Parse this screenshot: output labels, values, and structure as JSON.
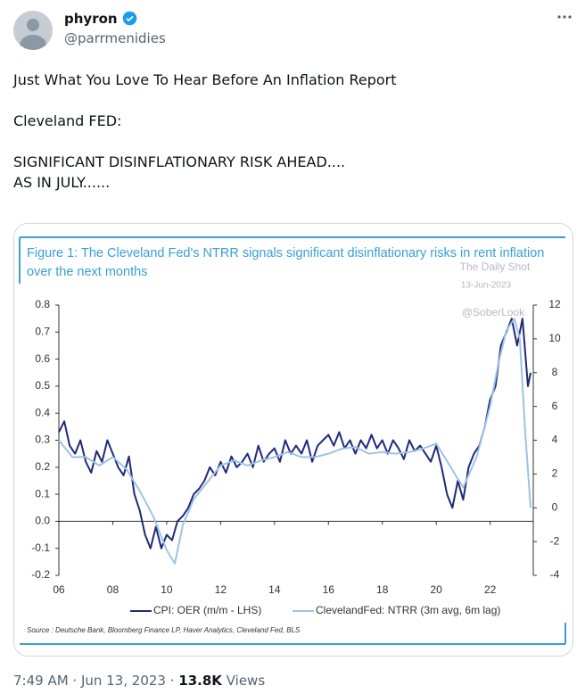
{
  "tweet": {
    "name": "phyron",
    "handle": "@parrmenidies",
    "paragraphs": [
      "Just What You Love To Hear Before An Inflation Report",
      "Cleveland FED:"
    ],
    "last_lines": [
      "SIGNIFICANT DISINFLATIONARY RISK AHEAD....",
      "AS IN JULY......"
    ],
    "time": "7:49 AM",
    "date": "Jun 13, 2023",
    "views": "13.8K",
    "views_label": "Views"
  },
  "chart_data": {
    "type": "line",
    "title": "Figure 1: The Cleveland Fed's NTRR signals significant disinflationary risks in rent inflation over the next months",
    "watermarks": [
      "The Daily Shot",
      "13-Jun-2023",
      "@SoberLook"
    ],
    "source": "Source : Deutsche Bank, Bloomberg Finance LP, Haver Analytics, Cleveland Fed, BLS",
    "xlim": [
      2005.9,
      2023.6
    ],
    "xticks": [
      {
        "value": 2006,
        "label": "06"
      },
      {
        "value": 2008,
        "label": "08"
      },
      {
        "value": 2010,
        "label": "10"
      },
      {
        "value": 2012,
        "label": "12"
      },
      {
        "value": 2014,
        "label": "14"
      },
      {
        "value": 2016,
        "label": "16"
      },
      {
        "value": 2018,
        "label": "18"
      },
      {
        "value": 2020,
        "label": "20"
      },
      {
        "value": 2022,
        "label": "22"
      }
    ],
    "ylim": [
      -0.2,
      0.8
    ],
    "yticks": [
      -0.2,
      -0.1,
      {
        "value": 0,
        "label": "0.0"
      },
      0.1,
      0.2,
      0.3,
      0.4,
      0.5,
      0.6,
      0.7,
      0.8
    ],
    "y2lim": [
      -4,
      12
    ],
    "y2ticks": [
      -4,
      -2,
      0,
      2,
      4,
      6,
      8,
      10,
      12
    ],
    "series": [
      {
        "name": "CPI: OER (m/m - LHS)",
        "color": "#1f2a7a",
        "x": [
          2006.0,
          2006.2,
          2006.4,
          2006.6,
          2006.8,
          2007.0,
          2007.2,
          2007.4,
          2007.6,
          2007.8,
          2008.0,
          2008.2,
          2008.4,
          2008.6,
          2008.8,
          2009.0,
          2009.2,
          2009.4,
          2009.6,
          2009.8,
          2010.0,
          2010.2,
          2010.4,
          2010.6,
          2010.8,
          2011.0,
          2011.2,
          2011.4,
          2011.6,
          2011.8,
          2012.0,
          2012.2,
          2012.4,
          2012.6,
          2012.8,
          2013.0,
          2013.2,
          2013.4,
          2013.6,
          2013.8,
          2014.0,
          2014.2,
          2014.4,
          2014.6,
          2014.8,
          2015.0,
          2015.2,
          2015.4,
          2015.6,
          2015.8,
          2016.0,
          2016.2,
          2016.4,
          2016.6,
          2016.8,
          2017.0,
          2017.2,
          2017.4,
          2017.6,
          2017.8,
          2018.0,
          2018.2,
          2018.4,
          2018.6,
          2018.8,
          2019.0,
          2019.2,
          2019.4,
          2019.6,
          2019.8,
          2020.0,
          2020.2,
          2020.4,
          2020.6,
          2020.8,
          2021.0,
          2021.2,
          2021.4,
          2021.6,
          2021.8,
          2022.0,
          2022.2,
          2022.4,
          2022.6,
          2022.8,
          2023.0,
          2023.2,
          2023.4,
          2023.5
        ],
        "values": [
          0.33,
          0.37,
          0.28,
          0.25,
          0.3,
          0.22,
          0.18,
          0.26,
          0.22,
          0.3,
          0.25,
          0.2,
          0.17,
          0.24,
          0.1,
          0.04,
          -0.05,
          -0.1,
          -0.02,
          -0.1,
          -0.05,
          -0.07,
          0.0,
          0.02,
          0.05,
          0.1,
          0.12,
          0.15,
          0.2,
          0.17,
          0.22,
          0.18,
          0.24,
          0.2,
          0.22,
          0.25,
          0.2,
          0.28,
          0.22,
          0.25,
          0.27,
          0.22,
          0.3,
          0.25,
          0.28,
          0.25,
          0.3,
          0.22,
          0.28,
          0.3,
          0.32,
          0.28,
          0.33,
          0.27,
          0.3,
          0.25,
          0.3,
          0.27,
          0.32,
          0.27,
          0.3,
          0.25,
          0.3,
          0.27,
          0.23,
          0.3,
          0.26,
          0.28,
          0.25,
          0.22,
          0.28,
          0.2,
          0.1,
          0.05,
          0.15,
          0.08,
          0.2,
          0.25,
          0.28,
          0.35,
          0.45,
          0.5,
          0.65,
          0.7,
          0.75,
          0.65,
          0.75,
          0.5,
          0.55
        ]
      },
      {
        "name": "ClevelandFed: NTRR (3m avg, 6m lag)",
        "color": "#9dc3e6",
        "axis": "y2",
        "x": [
          2006.0,
          2006.5,
          2007.0,
          2007.5,
          2008.0,
          2008.5,
          2009.0,
          2009.5,
          2010.0,
          2010.3,
          2010.6,
          2011.0,
          2011.5,
          2012.0,
          2012.5,
          2013.0,
          2013.5,
          2014.0,
          2014.5,
          2015.0,
          2015.5,
          2016.0,
          2016.5,
          2017.0,
          2017.5,
          2018.0,
          2018.5,
          2019.0,
          2019.5,
          2020.0,
          2020.5,
          2021.0,
          2021.5,
          2022.0,
          2022.3,
          2022.6,
          2022.9,
          2023.1,
          2023.3,
          2023.5
        ],
        "values": [
          4,
          3,
          3,
          2.5,
          3,
          2.3,
          1,
          -0.5,
          -2.5,
          -3.3,
          -1,
          0.5,
          1.5,
          2.5,
          2.8,
          2.5,
          2.8,
          3,
          3.3,
          3,
          3,
          3.2,
          3.5,
          3.6,
          3.2,
          3.3,
          3.2,
          3.3,
          3.5,
          3.8,
          2.5,
          1.2,
          3,
          6,
          8.5,
          10.5,
          11.2,
          10,
          4.5,
          0
        ]
      }
    ]
  }
}
